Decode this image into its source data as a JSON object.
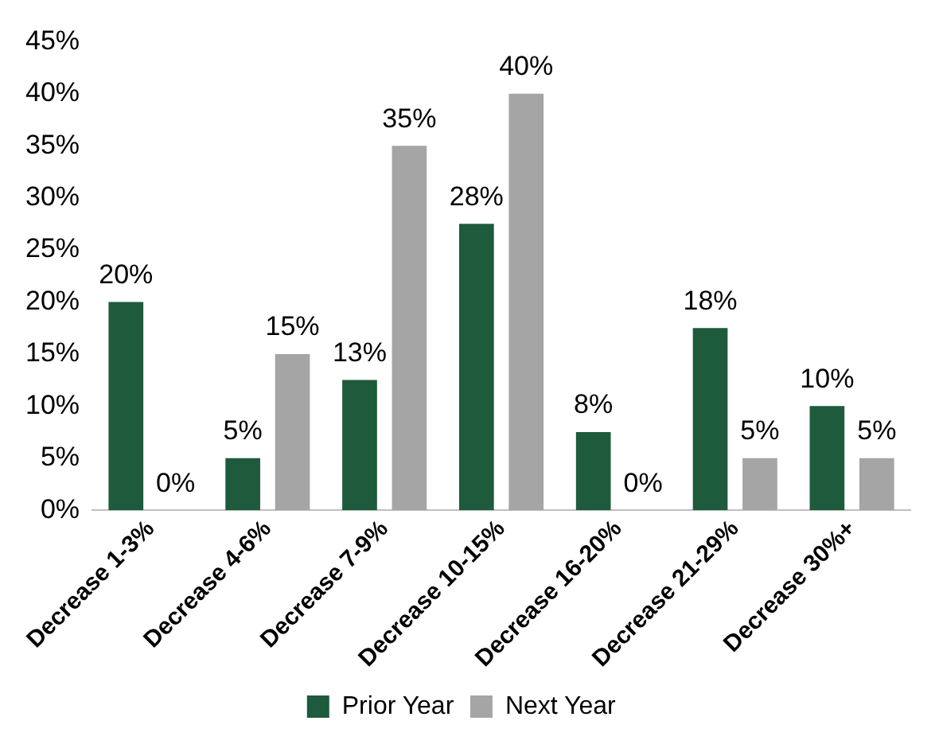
{
  "chart_data": {
    "type": "bar",
    "categories": [
      "Decrease 1-3%",
      "Decrease 4-6%",
      "Decrease 7-9%",
      "Decrease 10-15%",
      "Decrease 16-20%",
      "Decrease 21-29%",
      "Decrease 30%+"
    ],
    "series": [
      {
        "name": "Prior Year",
        "color": "#1e5a3c",
        "values": [
          20,
          5,
          12.5,
          27.5,
          7.5,
          17.5,
          10
        ],
        "value_labels": [
          "20%",
          "5%",
          "13%",
          "28%",
          "8%",
          "18%",
          "10%"
        ]
      },
      {
        "name": "Next Year",
        "color": "#a5a5a5",
        "values": [
          0,
          15,
          35,
          40,
          0,
          5,
          5
        ],
        "value_labels": [
          "0%",
          "15%",
          "35%",
          "40%",
          "0%",
          "5%",
          "5%"
        ]
      }
    ],
    "ylim": [
      0,
      45
    ],
    "yticks": [
      {
        "value": 0,
        "label": "0%"
      },
      {
        "value": 5,
        "label": "5%"
      },
      {
        "value": 10,
        "label": "10%"
      },
      {
        "value": 15,
        "label": "15%"
      },
      {
        "value": 20,
        "label": "20%"
      },
      {
        "value": 25,
        "label": "25%"
      },
      {
        "value": 30,
        "label": "30%"
      },
      {
        "value": 35,
        "label": "35%"
      },
      {
        "value": 40,
        "label": "40%"
      },
      {
        "value": 45,
        "label": "45%"
      }
    ],
    "grid": false,
    "legend": "bottom"
  }
}
